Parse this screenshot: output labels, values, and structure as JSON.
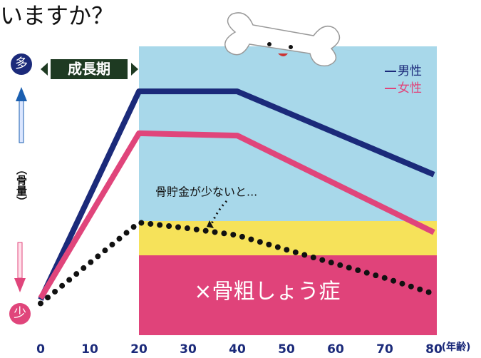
{
  "chart_data": {
    "type": "line",
    "title": "いますか？",
    "x": [
      0,
      20,
      40,
      80
    ],
    "xlim": [
      0,
      80
    ],
    "xticks": [
      0,
      10,
      20,
      30,
      40,
      50,
      60,
      70,
      80
    ],
    "x_label": "(年齢)",
    "ylim": [
      0,
      100
    ],
    "y_label": "（骨量）",
    "y_top_label": "多",
    "y_bottom_label": "少",
    "series": [
      {
        "name": "男性",
        "color": "#1b2a7a",
        "x": [
          0,
          20,
          40,
          80
        ],
        "values": [
          12.3,
          84.4,
          84.4,
          55.6
        ]
      },
      {
        "name": "女性",
        "color": "#e0457b",
        "x": [
          0,
          20,
          40,
          80
        ],
        "values": [
          12.8,
          69.9,
          69.1,
          35.6
        ]
      },
      {
        "color": "#111111",
        "line_style": "dotted",
        "x": [
          0,
          20,
          30,
          40,
          50,
          60,
          70,
          80
        ],
        "values": [
          11,
          39,
          37,
          34.6,
          29.6,
          24.7,
          19.8,
          14.3
        ]
      }
    ],
    "annotations": {
      "growth": "成長期",
      "low_savings": "骨貯金が少ないと...",
      "osteoporosis": "×骨粗しょう症"
    }
  }
}
